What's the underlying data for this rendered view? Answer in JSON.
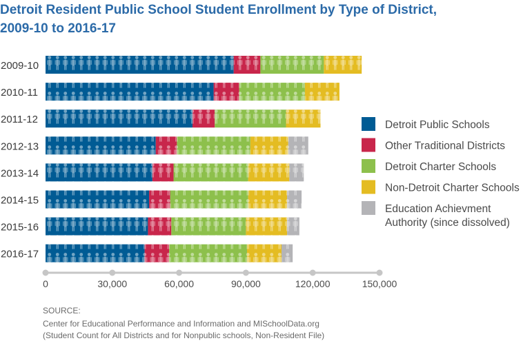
{
  "chart_data": {
    "type": "bar",
    "orientation": "horizontal",
    "stacked": true,
    "title_lines": [
      "Detroit Resident Public School Student Enrollment by Type of District,",
      "2009-10 to 2016-17"
    ],
    "categories": [
      "2009-10",
      "2010-11",
      "2011-12",
      "2012-13",
      "2013-14",
      "2014-15",
      "2015-16",
      "2016-17"
    ],
    "series": [
      {
        "name": "Detroit Public Schools",
        "color": "#005b94",
        "values": [
          84500,
          75500,
          66000,
          49500,
          48000,
          46500,
          46000,
          44500
        ]
      },
      {
        "name": "Other Traditional Districts",
        "color": "#c8264b",
        "values": [
          12000,
          11500,
          10000,
          9500,
          9500,
          9500,
          10500,
          11000
        ]
      },
      {
        "name": "Detroit Charter Schools",
        "color": "#8dc04c",
        "values": [
          28500,
          29500,
          32000,
          33000,
          33500,
          35000,
          33500,
          35000
        ]
      },
      {
        "name": "Non-Detroit Charter Schools",
        "color": "#e4bc22",
        "values": [
          17000,
          15500,
          15500,
          17000,
          18500,
          17500,
          18500,
          15500
        ]
      },
      {
        "name": "Education Achievment Authority (since dissolved)",
        "legend_lines": [
          "Education Achievment",
          "Authority (since dissolved)"
        ],
        "color": "#b4b4b7",
        "values": [
          0,
          0,
          0,
          9000,
          6500,
          6500,
          5500,
          5000
        ]
      }
    ],
    "x_ticks": [
      0,
      30000,
      60000,
      90000,
      120000,
      150000
    ],
    "x_tick_labels": [
      "0",
      "30,000",
      "60,000",
      "90,000",
      "120,000",
      "150,000"
    ],
    "xlim": [
      0,
      150000
    ],
    "axis_color": "#c6c6c6",
    "legend_position": "right",
    "grid": false
  },
  "source": {
    "heading": "SOURCE:",
    "line1": "Center for Educational Performance and Information and MISchoolData.org",
    "line2": "(Student Count for All Districts and for Nonpublic schools, Non-Resident File)"
  }
}
